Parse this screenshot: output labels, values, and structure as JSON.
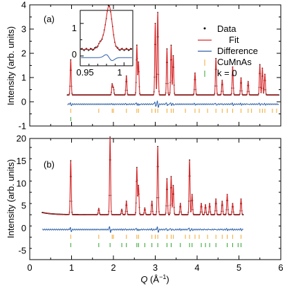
{
  "chart_data": [
    {
      "type": "scatter",
      "panel_label": "(a)",
      "ylabel": "Intensity (arb. units)",
      "xlabel_var": "Q",
      "xlabel_unit": " (Å",
      "xlabel_exp": "−1",
      "xlabel_close": ")",
      "xlim": [
        0,
        6
      ],
      "ylim": [
        -1,
        4
      ],
      "yticks": [
        "-1",
        "0",
        "1",
        "2",
        "3",
        "4"
      ],
      "legend": [
        "Data",
        "Fit",
        "Difference",
        "CuMnAs",
        "k = 0"
      ],
      "colors": {
        "data": "#000000",
        "fit": "#d62728",
        "difference": "#2a5ea8",
        "cumnas": "#f0a830",
        "k0": "#2ca02c"
      },
      "baseline": 0.28,
      "difference_offset": -0.1,
      "peaks": [
        {
          "x": 0.98,
          "y": 1.45
        },
        {
          "x": 1.97,
          "y": 0.45
        },
        {
          "x": 2.0,
          "y": 0.3
        },
        {
          "x": 2.31,
          "y": 0.78
        },
        {
          "x": 2.56,
          "y": 2.05
        },
        {
          "x": 2.6,
          "y": 1.35
        },
        {
          "x": 3.0,
          "y": 2.95
        },
        {
          "x": 3.06,
          "y": 3.4
        },
        {
          "x": 3.28,
          "y": 1.9
        },
        {
          "x": 3.38,
          "y": 2.05
        },
        {
          "x": 3.43,
          "y": 1.62
        },
        {
          "x": 3.95,
          "y": 0.9
        },
        {
          "x": 4.45,
          "y": 1.5
        },
        {
          "x": 4.6,
          "y": 0.6
        },
        {
          "x": 4.85,
          "y": 1.15
        },
        {
          "x": 5.05,
          "y": 0.7
        },
        {
          "x": 5.22,
          "y": 0.55
        },
        {
          "x": 5.5,
          "y": 1.25
        },
        {
          "x": 5.56,
          "y": 1.1
        },
        {
          "x": 5.62,
          "y": 0.85
        }
      ],
      "ticks_cumnas": [
        0.98,
        1.65,
        1.97,
        2.0,
        2.31,
        2.56,
        2.6,
        2.92,
        3.0,
        3.06,
        3.28,
        3.38,
        3.43,
        3.72,
        3.95,
        4.05,
        4.25,
        4.45,
        4.6,
        4.72,
        4.85,
        5.05,
        5.22,
        5.3,
        5.5,
        5.56,
        5.62,
        5.8,
        5.9
      ],
      "ticks_k0": [
        0.98
      ],
      "inset": {
        "xlim": [
          0.95,
          1.01
        ],
        "ylim": [
          -0.3,
          1.4
        ],
        "xticks": [
          "0.95",
          "1"
        ],
        "yticks": [
          "0",
          "1"
        ],
        "peak_center": 0.983,
        "peak_height": 1.3
      }
    },
    {
      "type": "scatter",
      "panel_label": "(b)",
      "ylabel": "Intensity (arb. units)",
      "xlim": [
        0,
        6
      ],
      "ylim": [
        -7,
        20
      ],
      "yticks": [
        "-5",
        "0",
        "5",
        "10",
        "15",
        "20"
      ],
      "xticks": [
        "0",
        "1",
        "2",
        "3",
        "4",
        "5",
        "6"
      ],
      "baseline": 3.0,
      "difference_offset": -0.3,
      "peaks": [
        {
          "x": 0.98,
          "y": 12.0
        },
        {
          "x": 1.65,
          "y": 1.4
        },
        {
          "x": 1.92,
          "y": 17.3
        },
        {
          "x": 2.2,
          "y": 1.2
        },
        {
          "x": 2.31,
          "y": 3.0
        },
        {
          "x": 2.56,
          "y": 10.5
        },
        {
          "x": 2.6,
          "y": 6.5
        },
        {
          "x": 2.75,
          "y": 1.5
        },
        {
          "x": 2.92,
          "y": 3.0
        },
        {
          "x": 3.06,
          "y": 15.2
        },
        {
          "x": 3.28,
          "y": 8.0
        },
        {
          "x": 3.38,
          "y": 8.5
        },
        {
          "x": 3.43,
          "y": 6.5
        },
        {
          "x": 3.6,
          "y": 2.5
        },
        {
          "x": 3.82,
          "y": 12.2
        },
        {
          "x": 3.88,
          "y": 4.5
        },
        {
          "x": 4.1,
          "y": 2.5
        },
        {
          "x": 4.2,
          "y": 2.2
        },
        {
          "x": 4.3,
          "y": 2.5
        },
        {
          "x": 4.45,
          "y": 3.5
        },
        {
          "x": 4.6,
          "y": 3.0
        },
        {
          "x": 4.72,
          "y": 4.5
        },
        {
          "x": 4.85,
          "y": 2.5
        },
        {
          "x": 5.05,
          "y": 3.5
        }
      ],
      "ticks_cumnas": [
        0.98,
        1.65,
        1.97,
        2.0,
        2.31,
        2.56,
        2.6,
        2.92,
        3.0,
        3.06,
        3.28,
        3.38,
        3.43,
        3.72,
        3.82,
        3.95,
        4.05,
        4.25,
        4.45,
        4.6,
        4.72,
        4.85,
        5.05
      ],
      "ticks_k0": [
        0.98,
        1.65,
        1.92,
        2.2,
        2.31,
        2.56,
        2.6,
        2.75,
        2.92,
        3.06,
        3.28,
        3.38,
        3.6,
        3.82,
        3.88,
        4.1,
        4.2,
        4.3,
        4.45,
        4.72,
        4.85,
        4.98,
        5.05
      ]
    }
  ]
}
